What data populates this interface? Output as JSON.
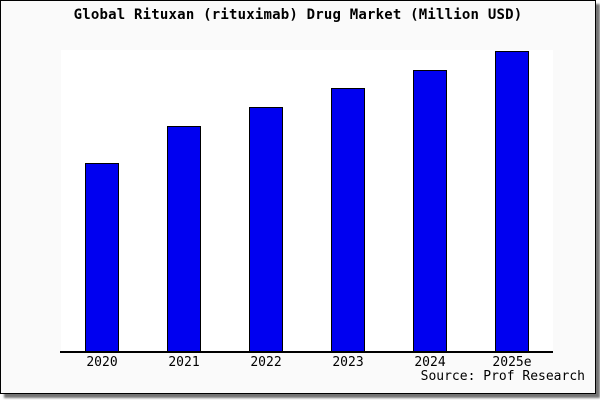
{
  "chart_data": {
    "type": "bar",
    "title": "Global Rituxan (rituximab) Drug Market (Million USD)",
    "categories": [
      "2020",
      "2021",
      "2022",
      "2023",
      "2024",
      "2025e"
    ],
    "values": [
      62.6,
      74.8,
      81.1,
      87.4,
      93.4,
      99.7
    ],
    "value_units": "relative (y-axis is unlabeled; values estimated as % of full plot height)",
    "xlabel": "",
    "ylabel": "",
    "ylim": [
      0,
      100
    ],
    "grid": false,
    "legend": "none",
    "source_label": "Source: Prof Research"
  },
  "colors": {
    "bar_fill": "#0000f0",
    "bar_border": "#000000",
    "axis_line": "#000000",
    "frame_border": "#000000",
    "frame_background": "#fafafa",
    "plot_background": "#ffffff",
    "title_text": "#000000"
  }
}
